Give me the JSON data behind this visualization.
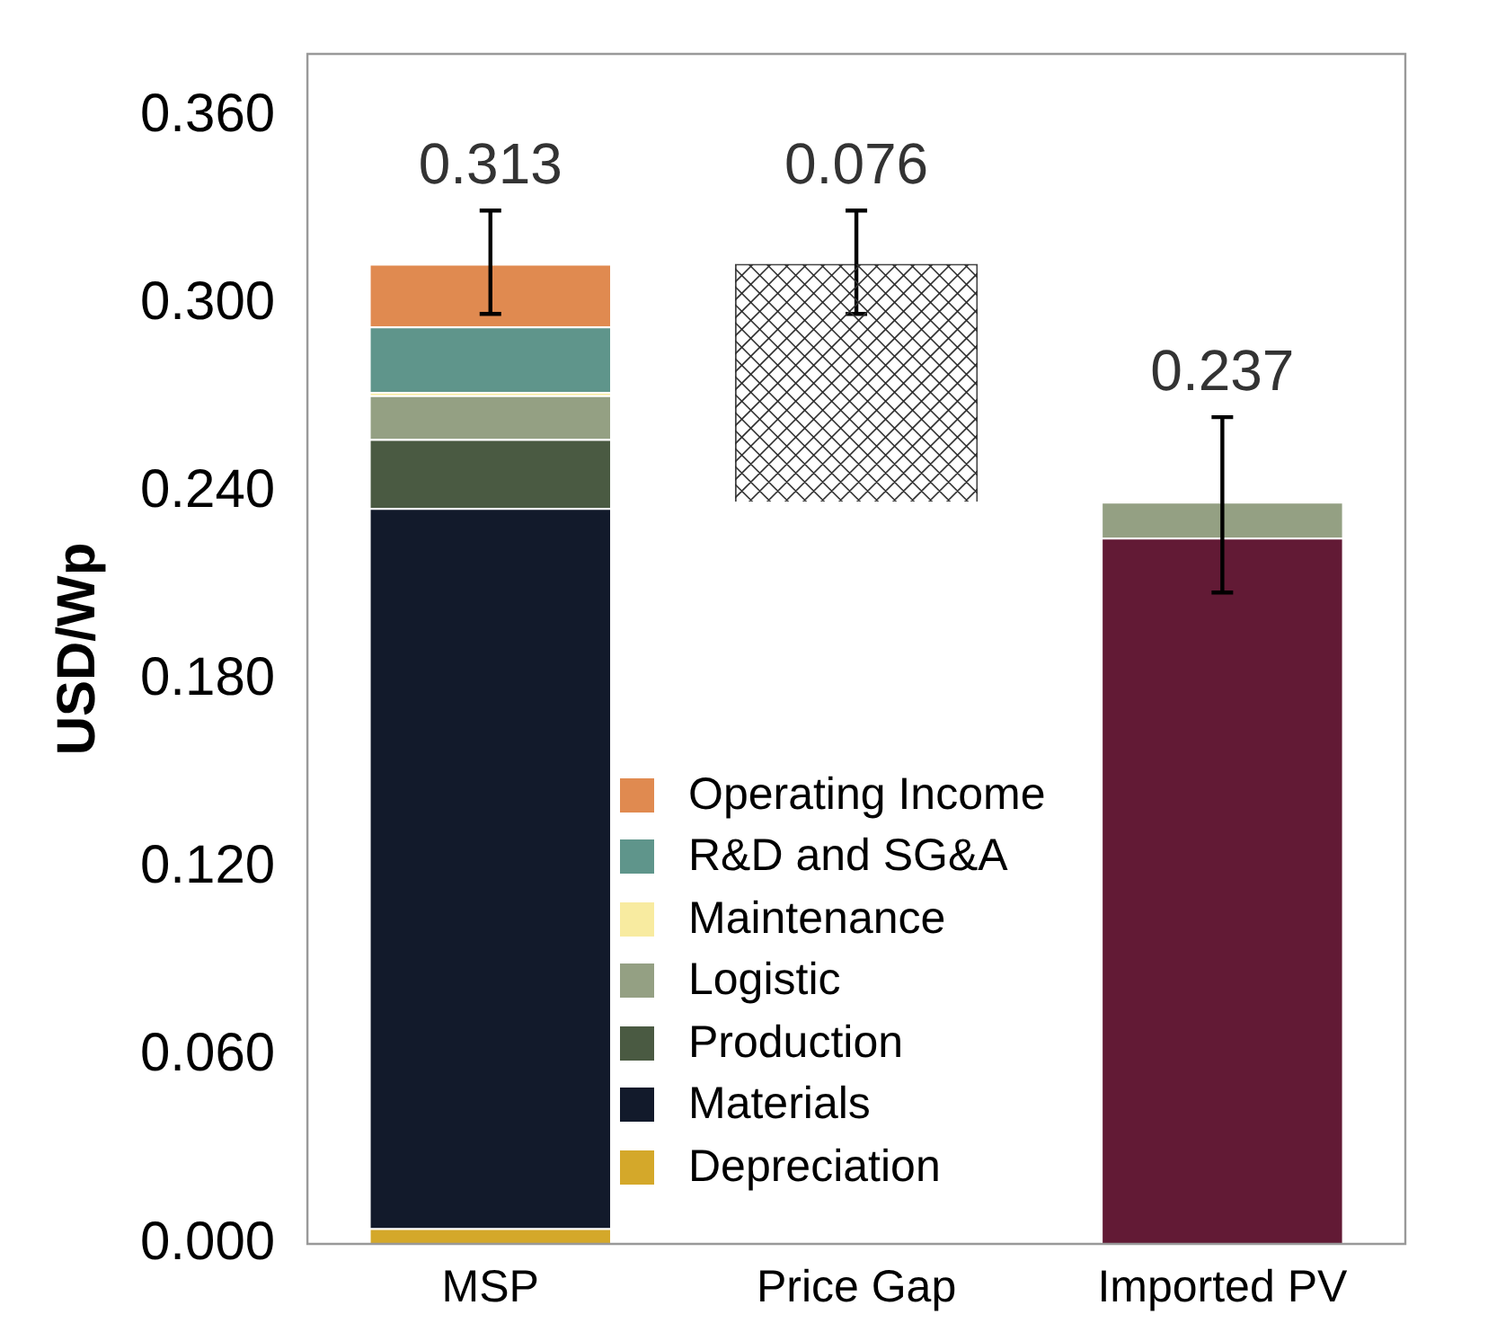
{
  "chart_data": {
    "type": "bar",
    "stacked": true,
    "ylabel": "USD/Wp",
    "categories": [
      "MSP",
      "Price Gap",
      "Imported PV"
    ],
    "series": [
      {
        "color": "#621a35",
        "values": [
          null,
          null,
          0.2255
        ]
      },
      {
        "name": "Depreciation",
        "color": "#d4a82a",
        "values": [
          0.005,
          null,
          null
        ]
      },
      {
        "name": "Materials",
        "color": "#121a2b",
        "values": [
          0.23,
          null,
          null
        ]
      },
      {
        "name": "Production",
        "color": "#4a5a42",
        "values": [
          0.022,
          null,
          null
        ]
      },
      {
        "name": "Logistic",
        "color": "#94a083",
        "values": [
          0.014,
          null,
          0.0115
        ],
        "errors": [
          null,
          null,
          [
            0.208,
            0.264
          ]
        ]
      },
      {
        "name": "Maintenance",
        "color": "#f8eba0",
        "values": [
          0.001,
          null,
          null
        ]
      },
      {
        "name": "R&D and SG&A",
        "color": "#5f958b",
        "values": [
          0.021,
          null,
          null
        ]
      },
      {
        "name": "Operating Income",
        "color": "#e08a50",
        "values": [
          0.02,
          null,
          null
        ],
        "errors": [
          [
            0.297,
            0.33
          ],
          null,
          null
        ]
      },
      {
        "color": "#ffffff",
        "values": [
          null,
          0.076,
          null
        ],
        "base": [
          null,
          0.237,
          null
        ],
        "errors": [
          null,
          [
            0.297,
            0.33
          ],
          null
        ]
      }
    ],
    "totals": [
      "0.313",
      "0.076",
      "0.237"
    ],
    "ylim": [
      0,
      0.38
    ],
    "yticks": [
      {
        "value": 0,
        "label": "0.000"
      },
      {
        "value": 0.06,
        "label": "0.060"
      },
      {
        "value": 0.12,
        "label": "0.120"
      },
      {
        "value": 0.18,
        "label": "0.180"
      },
      {
        "value": 0.24,
        "label": "0.240"
      },
      {
        "value": 0.3,
        "label": "0.300"
      },
      {
        "value": 0.36,
        "label": "0.360"
      }
    ],
    "grid": false,
    "legend": "bottom"
  }
}
